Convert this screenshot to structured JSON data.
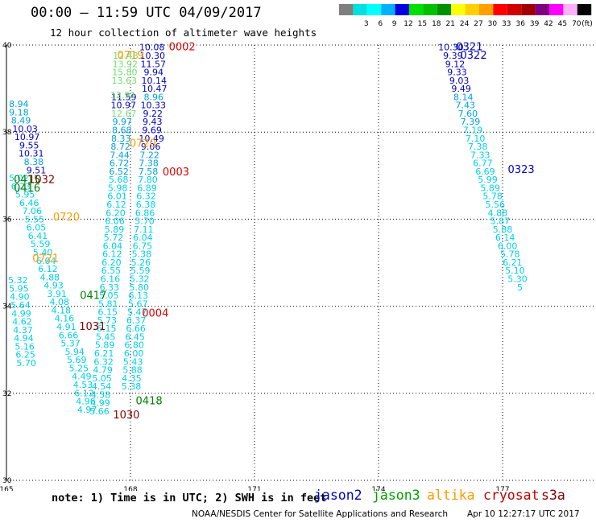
{
  "header": {
    "title": "00:00 – 11:59 UTC 04/09/2017",
    "subtitle": "12 hour collection of altimeter wave heights"
  },
  "legend": {
    "bins": [
      {
        "label": "",
        "color": "#7f7f7f"
      },
      {
        "label": "3",
        "color": "#00e0e0"
      },
      {
        "label": "6",
        "color": "#00ffff"
      },
      {
        "label": "9",
        "color": "#00b0ff"
      },
      {
        "label": "12",
        "color": "#0000e0"
      },
      {
        "label": "15",
        "color": "#00e000"
      },
      {
        "label": "18",
        "color": "#00c000"
      },
      {
        "label": "21",
        "color": "#009000"
      },
      {
        "label": "24",
        "color": "#ffff00"
      },
      {
        "label": "27",
        "color": "#ffd000"
      },
      {
        "label": "30",
        "color": "#ffa000"
      },
      {
        "label": "33",
        "color": "#ff0000"
      },
      {
        "label": "36",
        "color": "#d00000"
      },
      {
        "label": "39",
        "color": "#a00000"
      },
      {
        "label": "42",
        "color": "#800080"
      },
      {
        "label": "45",
        "color": "#ff00ff"
      },
      {
        "label": "70",
        "color": "#ffb0ff"
      },
      {
        "label": "",
        "color": "#000000"
      }
    ],
    "unit": "(ft)"
  },
  "chart_data": {
    "type": "scatter",
    "x_ticks": [
      "165",
      "168",
      "171",
      "174",
      "177"
    ],
    "y_ticks": [
      "40",
      "38",
      "36",
      "34",
      "32",
      "30"
    ],
    "xlim": [
      165,
      179
    ],
    "ylim": [
      30,
      40
    ],
    "grid": true,
    "colors": {
      "c1": "#00d0e8",
      "c2": "#00a0e0",
      "c3": "#0000c0",
      "green": "#70e070",
      "dgreen": "#008000",
      "orange": "#ff9900",
      "red": "#e00000",
      "maroon": "#800000"
    },
    "series": [
      {
        "color": "c3",
        "points": [
          [
            168.52,
            39.95,
            "10.08"
          ],
          [
            168.53,
            39.76,
            "10.30"
          ],
          [
            168.55,
            39.57,
            "11.57"
          ],
          [
            168.56,
            39.38,
            "9.94"
          ],
          [
            168.57,
            39.19,
            "10.14"
          ],
          [
            168.58,
            39.0,
            "10.47"
          ]
        ]
      },
      {
        "color": "c2",
        "points": [
          [
            168.56,
            38.81,
            "8.96"
          ]
        ]
      },
      {
        "color": "c3",
        "points": [
          [
            168.55,
            38.62,
            "10.33"
          ],
          [
            168.54,
            38.43,
            "9.22"
          ],
          [
            168.53,
            38.24,
            "9.43"
          ],
          [
            168.52,
            38.05,
            "9.69"
          ],
          [
            168.51,
            37.86,
            "10.49"
          ],
          [
            168.49,
            37.67,
            "9.06"
          ]
        ]
      },
      {
        "color": "c2",
        "points": [
          [
            168.46,
            37.48,
            "7.22"
          ],
          [
            168.44,
            37.29,
            "7.38"
          ],
          [
            168.43,
            37.1,
            "7.58"
          ]
        ]
      },
      {
        "color": "c1",
        "points": [
          [
            168.42,
            36.91,
            "7.80"
          ],
          [
            168.4,
            36.72,
            "6.89"
          ],
          [
            168.38,
            36.53,
            "6.32"
          ],
          [
            168.37,
            36.34,
            "6.38"
          ],
          [
            168.35,
            36.15,
            "6.86"
          ],
          [
            168.34,
            35.96,
            "5.70"
          ],
          [
            168.32,
            35.77,
            "7.11"
          ],
          [
            168.3,
            35.58,
            "6.04"
          ],
          [
            168.29,
            35.39,
            "6.75"
          ],
          [
            168.27,
            35.2,
            "5.38"
          ],
          [
            168.25,
            35.01,
            "5.26"
          ],
          [
            168.24,
            34.82,
            "5.59"
          ],
          [
            168.22,
            34.63,
            "5.32"
          ],
          [
            168.21,
            34.44,
            "5.80"
          ],
          [
            168.19,
            34.25,
            "6.13"
          ],
          [
            168.18,
            34.06,
            "5.67"
          ],
          [
            168.16,
            33.87,
            "5.47"
          ],
          [
            168.14,
            33.68,
            "6.37"
          ],
          [
            168.13,
            33.49,
            "6.66"
          ],
          [
            168.11,
            33.3,
            "6.45"
          ],
          [
            168.09,
            33.11,
            "6.80"
          ],
          [
            168.08,
            32.92,
            "6.00"
          ],
          [
            168.06,
            32.73,
            "5.43"
          ],
          [
            168.05,
            32.54,
            "5.88"
          ],
          [
            168.03,
            32.35,
            "4.35"
          ],
          [
            168.02,
            32.16,
            "5.38"
          ]
        ]
      },
      {
        "color": "c2",
        "points": [
          [
            167.8,
            38.24,
            "9.97"
          ],
          [
            167.79,
            38.05,
            "8.68"
          ],
          [
            167.77,
            37.86,
            "8.33"
          ],
          [
            167.76,
            37.67,
            "8.72"
          ],
          [
            167.74,
            37.48,
            "7.44"
          ],
          [
            167.73,
            37.29,
            "6.72"
          ],
          [
            167.72,
            37.1,
            "6.52"
          ]
        ]
      },
      {
        "color": "c3",
        "points": [
          [
            167.84,
            38.81,
            "11.59"
          ],
          [
            167.83,
            38.62,
            "10.97"
          ]
        ]
      },
      {
        "color": "green",
        "points": [
          [
            167.88,
            39.76,
            "12.48"
          ],
          [
            167.87,
            39.57,
            "13.92"
          ],
          [
            167.86,
            39.38,
            "15.80"
          ],
          [
            167.85,
            39.19,
            "13.63"
          ],
          [
            167.84,
            38.43,
            "12.67"
          ],
          [
            167.82,
            38.85,
            "12.91"
          ]
        ]
      },
      {
        "color": "c1",
        "points": [
          [
            167.71,
            36.91,
            "5.68"
          ],
          [
            167.69,
            36.72,
            "5.98"
          ],
          [
            167.68,
            36.53,
            "6.01"
          ],
          [
            167.66,
            36.34,
            "6.12"
          ],
          [
            167.64,
            36.15,
            "6.20"
          ],
          [
            167.62,
            35.96,
            "6.06"
          ],
          [
            167.61,
            35.77,
            "5.89"
          ],
          [
            167.59,
            35.58,
            "5.72"
          ],
          [
            167.57,
            35.39,
            "6.04"
          ],
          [
            167.56,
            35.2,
            "6.12"
          ],
          [
            167.54,
            35.01,
            "6.20"
          ],
          [
            167.53,
            34.82,
            "6.55"
          ],
          [
            167.51,
            34.63,
            "6.16"
          ],
          [
            167.49,
            34.44,
            "6.33"
          ],
          [
            167.48,
            34.25,
            "5.05"
          ],
          [
            167.46,
            34.06,
            "5.81"
          ],
          [
            167.45,
            33.87,
            "6.15"
          ],
          [
            167.43,
            33.68,
            "5.73"
          ],
          [
            167.42,
            33.49,
            "6.15"
          ],
          [
            167.4,
            33.3,
            "5.45"
          ],
          [
            167.38,
            33.11,
            "5.89"
          ],
          [
            167.36,
            32.92,
            "6.21"
          ],
          [
            167.35,
            32.73,
            "6.32"
          ],
          [
            167.33,
            32.54,
            "4.79"
          ],
          [
            167.31,
            32.35,
            "5.05"
          ],
          [
            167.3,
            32.16,
            "4.54"
          ],
          [
            167.28,
            31.97,
            "4.58"
          ],
          [
            167.27,
            31.78,
            "4.99"
          ],
          [
            167.25,
            31.59,
            "5.66"
          ]
        ]
      },
      {
        "color": "c2",
        "points": [
          [
            165.3,
            38.65,
            "8.94"
          ],
          [
            165.3,
            38.46,
            "9.18"
          ],
          [
            165.35,
            38.27,
            "8.49"
          ]
        ]
      },
      {
        "color": "c3",
        "points": [
          [
            165.45,
            38.08,
            "10.03"
          ],
          [
            165.5,
            37.89,
            "10.97"
          ],
          [
            165.55,
            37.7,
            "9.55"
          ],
          [
            165.6,
            37.51,
            "10.31"
          ]
        ]
      },
      {
        "color": "c2",
        "points": [
          [
            165.66,
            37.32,
            "8.38"
          ]
        ]
      },
      {
        "color": "c3",
        "points": [
          [
            165.72,
            37.13,
            "9.51"
          ]
        ]
      },
      {
        "color": "c1",
        "points": [
          [
            165.3,
            36.95,
            "5.02"
          ],
          [
            165.35,
            36.76,
            "6.23"
          ],
          [
            165.45,
            36.57,
            "5.95"
          ],
          [
            165.55,
            36.38,
            "6.46"
          ],
          [
            165.62,
            36.19,
            "7.06"
          ],
          [
            165.68,
            36.0,
            "5.55"
          ],
          [
            165.72,
            35.81,
            "6.05"
          ],
          [
            165.76,
            35.62,
            "6.41"
          ],
          [
            165.82,
            35.43,
            "5.59"
          ],
          [
            165.88,
            35.24,
            "5.40"
          ],
          [
            165.96,
            35.05,
            "6.04"
          ],
          [
            166.0,
            34.86,
            "6.12"
          ],
          [
            166.05,
            34.67,
            "4.88"
          ],
          [
            166.14,
            34.48,
            "4.93"
          ],
          [
            166.22,
            34.29,
            "3.91"
          ],
          [
            166.28,
            34.1,
            "4.08"
          ],
          [
            166.32,
            33.91,
            "4.18"
          ],
          [
            166.4,
            33.72,
            "4.16"
          ],
          [
            166.45,
            33.53,
            "4.91"
          ],
          [
            166.5,
            33.34,
            "6.66"
          ],
          [
            166.55,
            33.15,
            "5.37"
          ],
          [
            166.65,
            32.96,
            "5.94"
          ],
          [
            166.7,
            32.77,
            "5.69"
          ],
          [
            166.75,
            32.58,
            "5.25"
          ],
          [
            166.82,
            32.39,
            "4.49"
          ],
          [
            166.85,
            32.2,
            "4.53"
          ],
          [
            166.88,
            32.01,
            "6.12"
          ],
          [
            166.92,
            31.82,
            "4.96"
          ],
          [
            166.95,
            31.63,
            "4.97"
          ]
        ]
      },
      {
        "color": "c1",
        "points": [
          [
            165.28,
            34.6,
            "5.32"
          ],
          [
            165.3,
            34.41,
            "5.95"
          ],
          [
            165.32,
            34.22,
            "4.90"
          ],
          [
            165.34,
            34.03,
            "5.64"
          ],
          [
            165.36,
            33.84,
            "4.99"
          ],
          [
            165.38,
            33.65,
            "4.62"
          ],
          [
            165.4,
            33.46,
            "4.37"
          ],
          [
            165.42,
            33.27,
            "4.94"
          ],
          [
            165.44,
            33.08,
            "5.16"
          ],
          [
            165.46,
            32.89,
            "6.25"
          ],
          [
            165.48,
            32.7,
            "5.70"
          ]
        ]
      },
      {
        "color": "c3",
        "points": [
          [
            175.75,
            39.95,
            "10.30"
          ],
          [
            175.8,
            39.76,
            "9.39"
          ],
          [
            175.85,
            39.57,
            "9.12"
          ],
          [
            175.9,
            39.38,
            "9.33"
          ],
          [
            175.95,
            39.19,
            "9.03"
          ],
          [
            176.0,
            39.0,
            "9.49"
          ]
        ]
      },
      {
        "color": "c2",
        "points": [
          [
            176.05,
            38.81,
            "8.14"
          ],
          [
            176.1,
            38.62,
            "7.43"
          ],
          [
            176.16,
            38.43,
            "7.60"
          ],
          [
            176.22,
            38.24,
            "7.39"
          ]
        ]
      },
      {
        "color": "c1",
        "points": [
          [
            176.28,
            38.05,
            "7.19"
          ],
          [
            176.34,
            37.86,
            "7.10"
          ],
          [
            176.4,
            37.67,
            "7.38"
          ],
          [
            176.46,
            37.48,
            "7.33"
          ],
          [
            176.52,
            37.29,
            "6.77"
          ],
          [
            176.58,
            37.1,
            "6.69"
          ],
          [
            176.64,
            36.91,
            "5.99"
          ],
          [
            176.7,
            36.72,
            "5.89"
          ],
          [
            176.76,
            36.53,
            "5.78"
          ],
          [
            176.82,
            36.34,
            "5.56"
          ],
          [
            176.88,
            36.15,
            "4.88"
          ],
          [
            176.94,
            35.96,
            "5.87"
          ],
          [
            177.0,
            35.77,
            "5.88"
          ],
          [
            177.06,
            35.58,
            "6.14"
          ],
          [
            177.12,
            35.39,
            "6.00"
          ],
          [
            177.18,
            35.2,
            "5.78"
          ],
          [
            177.24,
            35.01,
            "6.21"
          ],
          [
            177.3,
            34.82,
            "5.10"
          ],
          [
            177.36,
            34.63,
            "5.30"
          ],
          [
            177.42,
            34.44,
            "5"
          ]
        ]
      }
    ],
    "pass_labels": [
      {
        "text": "0002",
        "x": 169.25,
        "y": 39.97,
        "color": "red"
      },
      {
        "text": "0719",
        "x": 168.0,
        "y": 39.78,
        "color": "orange"
      },
      {
        "text": "0720",
        "x": 168.3,
        "y": 37.75,
        "color": "orange"
      },
      {
        "text": "0003",
        "x": 169.1,
        "y": 37.1,
        "color": "red"
      },
      {
        "text": "0415",
        "x": 165.5,
        "y": 36.92,
        "color": "dgreen"
      },
      {
        "text": "1032",
        "x": 165.85,
        "y": 36.92,
        "color": "maroon"
      },
      {
        "text": "0416",
        "x": 165.5,
        "y": 36.73,
        "color": "dgreen"
      },
      {
        "text": "0720",
        "x": 166.45,
        "y": 36.06,
        "color": "orange"
      },
      {
        "text": "0721",
        "x": 165.95,
        "y": 35.11,
        "color": "orange"
      },
      {
        "text": "0417",
        "x": 167.1,
        "y": 34.26,
        "color": "dgreen"
      },
      {
        "text": "0004",
        "x": 168.6,
        "y": 33.85,
        "color": "red"
      },
      {
        "text": "1031",
        "x": 167.08,
        "y": 33.55,
        "color": "maroon"
      },
      {
        "text": "0418",
        "x": 168.45,
        "y": 31.84,
        "color": "dgreen"
      },
      {
        "text": "1030",
        "x": 167.9,
        "y": 31.52,
        "color": "maroon"
      },
      {
        "text": "0321",
        "x": 176.2,
        "y": 39.97,
        "color": "c3"
      },
      {
        "text": "0322",
        "x": 176.3,
        "y": 39.78,
        "color": "c3"
      },
      {
        "text": "0323",
        "x": 177.45,
        "y": 37.15,
        "color": "c3"
      }
    ]
  },
  "notes": {
    "note": "note: 1) Time is in UTC; 2) SWH is in feet"
  },
  "satellites": [
    {
      "name": "jason2",
      "color": "#0000c0",
      "x": 390
    },
    {
      "name": "jason3",
      "color": "#00a000",
      "x": 462
    },
    {
      "name": "altika",
      "color": "#ff9900",
      "x": 530
    },
    {
      "name": "cryosat",
      "color": "#c00000",
      "x": 600
    },
    {
      "name": "s3a",
      "color": "#800000",
      "x": 672
    }
  ],
  "footer": {
    "center": "NOAA/NESDIS Center for Satellite Applications and Research",
    "time": "Apr 10 12:27:17 UTC 2017"
  }
}
